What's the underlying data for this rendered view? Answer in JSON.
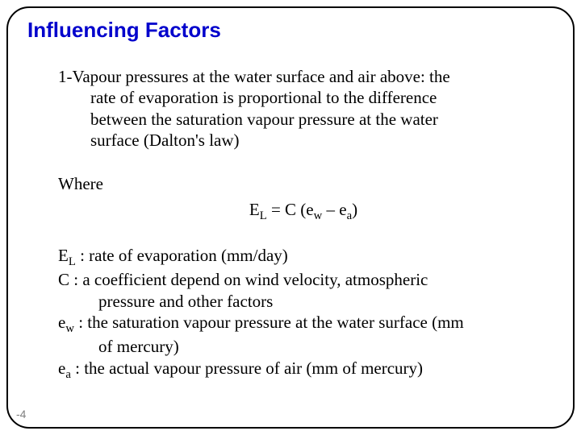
{
  "title": "Influencing Factors",
  "point1_line1": "1-Vapour pressures at the water surface and air above: the",
  "point1_line2": "rate of evaporation is proportional  to the difference",
  "point1_line3": "between the saturation vapour pressure at the water",
  "point1_line4": "surface (Dalton's law)",
  "where_label": "Where",
  "formula_pre": "E",
  "formula_sub1": "L",
  "formula_mid1": " =  C (e",
  "formula_sub2": "w",
  "formula_mid2": " – e",
  "formula_sub3": "a",
  "formula_end": ")",
  "def_EL_pre": "E",
  "def_EL_sub": "L",
  "def_EL_text": " : rate of evaporation (mm/day)",
  "def_C_text": "C : a coefficient depend on wind velocity, atmospheric",
  "def_C_text2": "pressure and other factors",
  "def_ew_pre": "e",
  "def_ew_sub": "w",
  "def_ew_text": " : the saturation vapour pressure at the water surface (mm",
  "def_ew_text2": "of mercury)",
  "def_ea_pre": "e",
  "def_ea_sub": "a",
  "def_ea_text": " : the actual vapour pressure of air (mm of mercury)",
  "page_number": "-4"
}
